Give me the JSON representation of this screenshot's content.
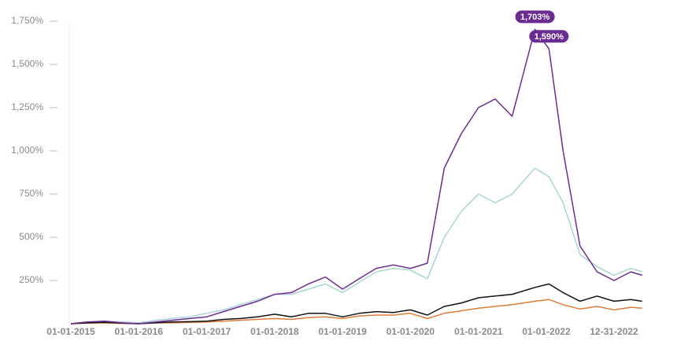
{
  "chart_data": {
    "type": "line",
    "x": [
      "01-01-2015",
      "04-01-2015",
      "07-01-2015",
      "10-01-2015",
      "01-01-2016",
      "04-01-2016",
      "07-01-2016",
      "10-01-2016",
      "01-01-2017",
      "04-01-2017",
      "07-01-2017",
      "10-01-2017",
      "01-01-2018",
      "04-01-2018",
      "07-01-2018",
      "10-01-2018",
      "01-01-2019",
      "04-01-2019",
      "07-01-2019",
      "10-01-2019",
      "01-01-2020",
      "04-01-2020",
      "07-01-2020",
      "10-01-2020",
      "01-01-2021",
      "04-01-2021",
      "07-01-2021",
      "11-01-2021",
      "01-15-2022",
      "04-01-2022",
      "07-01-2022",
      "10-01-2022",
      "12-31-2022",
      "04-01-2023",
      "05-31-2023"
    ],
    "series": [
      {
        "color": "#a9d3d6",
        "values": [
          0,
          10,
          15,
          10,
          5,
          20,
          30,
          40,
          60,
          80,
          110,
          140,
          170,
          170,
          200,
          230,
          180,
          240,
          300,
          320,
          310,
          260,
          500,
          650,
          750,
          700,
          750,
          900,
          850,
          700,
          400,
          330,
          280,
          320,
          300
        ]
      },
      {
        "color": "#e07b39",
        "values": [
          0,
          3,
          5,
          2,
          0,
          5,
          5,
          8,
          10,
          15,
          20,
          25,
          30,
          25,
          35,
          40,
          30,
          45,
          50,
          50,
          60,
          30,
          60,
          75,
          90,
          100,
          110,
          130,
          140,
          110,
          85,
          100,
          80,
          95,
          90
        ]
      },
      {
        "color": "#111111",
        "values": [
          0,
          5,
          8,
          3,
          0,
          5,
          10,
          12,
          15,
          25,
          30,
          40,
          55,
          40,
          60,
          60,
          40,
          60,
          70,
          65,
          80,
          50,
          100,
          120,
          150,
          160,
          170,
          210,
          230,
          180,
          130,
          160,
          130,
          140,
          130
        ]
      },
      {
        "color": "#6a2c91",
        "values": [
          0,
          10,
          15,
          5,
          0,
          10,
          20,
          30,
          40,
          70,
          100,
          130,
          170,
          180,
          230,
          270,
          200,
          260,
          320,
          340,
          320,
          350,
          900,
          1100,
          1250,
          1300,
          1200,
          1703,
          1590,
          1000,
          450,
          300,
          250,
          300,
          280
        ],
        "value_labels": [
          null,
          null,
          null,
          null,
          null,
          null,
          null,
          null,
          null,
          null,
          null,
          null,
          null,
          null,
          null,
          null,
          null,
          null,
          null,
          null,
          null,
          null,
          null,
          null,
          null,
          null,
          null,
          "1,703%",
          "1,590%",
          null,
          null,
          null,
          null,
          null,
          null
        ]
      }
    ],
    "xlim": [
      "01-01-2015",
      "07-31-2023"
    ],
    "xticks": [
      "01-01-2015",
      "01-01-2016",
      "01-01-2017",
      "01-01-2018",
      "01-01-2019",
      "01-01-2020",
      "01-01-2021",
      "01-01-2022",
      "12-31-2022"
    ],
    "ylim": [
      0,
      1750
    ],
    "yticks": [
      {
        "value": 250,
        "label": "250%"
      },
      {
        "value": 500,
        "label": "500%"
      },
      {
        "value": 750,
        "label": "750%"
      },
      {
        "value": 1000,
        "label": "1,000%"
      },
      {
        "value": 1250,
        "label": "1,250%"
      },
      {
        "value": 1500,
        "label": "1,500%"
      },
      {
        "value": 1750,
        "label": "1,750%"
      }
    ]
  }
}
